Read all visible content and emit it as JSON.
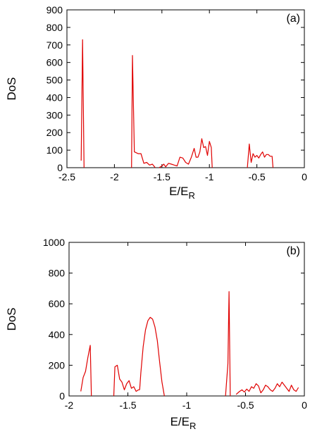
{
  "chart_data": [
    {
      "type": "line",
      "panel_label": "(a)",
      "xlabel": "E/E",
      "xlabel_sub": "R",
      "ylabel": "DoS",
      "xlim": [
        -2.5,
        0
      ],
      "ylim": [
        0,
        900
      ],
      "xticks": [
        -2.5,
        -2,
        -1.5,
        -1,
        -0.5,
        0
      ],
      "xtick_labels": [
        "-2.5",
        "-2",
        "-1.5",
        "-1",
        "-0.5",
        "0"
      ],
      "yticks": [
        0,
        100,
        200,
        300,
        400,
        500,
        600,
        700,
        800,
        900
      ],
      "ytick_labels": [
        "0",
        "100",
        "200",
        "300",
        "400",
        "500",
        "600",
        "700",
        "800",
        "900"
      ],
      "grid": false,
      "color": "#e00000",
      "series": [
        {
          "segments": [
            [
              [
                -2.35,
                40
              ],
              [
                -2.335,
                730
              ],
              [
                -2.32,
                0
              ]
            ],
            [
              [
                -1.82,
                0
              ],
              [
                -1.81,
                640
              ],
              [
                -1.79,
                90
              ],
              [
                -1.75,
                80
              ],
              [
                -1.72,
                80
              ],
              [
                -1.69,
                25
              ],
              [
                -1.66,
                30
              ],
              [
                -1.63,
                15
              ],
              [
                -1.6,
                20
              ],
              [
                -1.57,
                0
              ]
            ],
            [
              [
                -1.53,
                0
              ],
              [
                -1.5,
                10
              ],
              [
                -1.48,
                20
              ],
              [
                -1.46,
                5
              ],
              [
                -1.43,
                25
              ],
              [
                -1.4,
                20
              ],
              [
                -1.37,
                15
              ],
              [
                -1.34,
                10
              ],
              [
                -1.31,
                60
              ],
              [
                -1.28,
                55
              ],
              [
                -1.25,
                30
              ],
              [
                -1.22,
                20
              ],
              [
                -1.19,
                60
              ],
              [
                -1.16,
                110
              ],
              [
                -1.14,
                60
              ],
              [
                -1.12,
                60
              ],
              [
                -1.1,
                90
              ],
              [
                -1.08,
                165
              ],
              [
                -1.06,
                115
              ],
              [
                -1.04,
                120
              ],
              [
                -1.02,
                70
              ],
              [
                -1.0,
                150
              ],
              [
                -0.98,
                115
              ],
              [
                -0.97,
                0
              ]
            ],
            [
              [
                -0.6,
                0
              ],
              [
                -0.58,
                135
              ],
              [
                -0.56,
                30
              ],
              [
                -0.54,
                80
              ],
              [
                -0.52,
                60
              ],
              [
                -0.5,
                70
              ],
              [
                -0.48,
                55
              ],
              [
                -0.46,
                75
              ],
              [
                -0.44,
                90
              ],
              [
                -0.42,
                60
              ],
              [
                -0.4,
                75
              ],
              [
                -0.38,
                75
              ],
              [
                -0.36,
                65
              ],
              [
                -0.34,
                65
              ],
              [
                -0.33,
                0
              ]
            ]
          ]
        }
      ]
    },
    {
      "type": "line",
      "panel_label": "(b)",
      "xlabel": "E/E",
      "xlabel_sub": "R",
      "ylabel": "DoS",
      "xlim": [
        -2,
        0
      ],
      "ylim": [
        0,
        1000
      ],
      "xticks": [
        -2,
        -1.5,
        -1,
        -0.5,
        0
      ],
      "xtick_labels": [
        "-2",
        "-1.5",
        "-1",
        "-0.5",
        "0"
      ],
      "yticks": [
        0,
        200,
        400,
        600,
        800,
        1000
      ],
      "ytick_labels": [
        "0",
        "200",
        "400",
        "600",
        "800",
        "1000"
      ],
      "grid": false,
      "color": "#e00000",
      "series": [
        {
          "segments": [
            [
              [
                -1.9,
                30
              ],
              [
                -1.88,
                120
              ],
              [
                -1.86,
                160
              ],
              [
                -1.84,
                250
              ],
              [
                -1.82,
                330
              ],
              [
                -1.81,
                0
              ]
            ],
            [
              [
                -1.62,
                0
              ],
              [
                -1.61,
                190
              ],
              [
                -1.59,
                200
              ],
              [
                -1.57,
                110
              ],
              [
                -1.55,
                90
              ],
              [
                -1.53,
                40
              ],
              [
                -1.51,
                80
              ],
              [
                -1.49,
                100
              ],
              [
                -1.47,
                50
              ],
              [
                -1.45,
                60
              ],
              [
                -1.43,
                30
              ],
              [
                -1.41,
                40
              ],
              [
                -1.4,
                40
              ]
            ],
            [
              [
                -1.4,
                40
              ],
              [
                -1.39,
                150
              ],
              [
                -1.37,
                320
              ],
              [
                -1.35,
                430
              ],
              [
                -1.33,
                490
              ],
              [
                -1.31,
                512
              ],
              [
                -1.29,
                500
              ],
              [
                -1.27,
                450
              ],
              [
                -1.25,
                360
              ],
              [
                -1.23,
                220
              ],
              [
                -1.21,
                90
              ],
              [
                -1.19,
                0
              ]
            ],
            [
              [
                -0.67,
                0
              ],
              [
                -0.65,
                210
              ],
              [
                -0.64,
                680
              ],
              [
                -0.63,
                0
              ]
            ],
            [
              [
                -0.58,
                10
              ],
              [
                -0.55,
                30
              ],
              [
                -0.53,
                40
              ],
              [
                -0.51,
                25
              ],
              [
                -0.49,
                45
              ],
              [
                -0.47,
                30
              ],
              [
                -0.45,
                60
              ],
              [
                -0.43,
                50
              ],
              [
                -0.41,
                80
              ],
              [
                -0.39,
                65
              ],
              [
                -0.37,
                20
              ],
              [
                -0.35,
                40
              ],
              [
                -0.33,
                70
              ],
              [
                -0.31,
                60
              ],
              [
                -0.29,
                40
              ],
              [
                -0.27,
                30
              ],
              [
                -0.25,
                50
              ],
              [
                -0.23,
                80
              ],
              [
                -0.21,
                60
              ],
              [
                -0.19,
                90
              ],
              [
                -0.17,
                70
              ],
              [
                -0.15,
                50
              ],
              [
                -0.13,
                30
              ],
              [
                -0.11,
                70
              ],
              [
                -0.09,
                40
              ],
              [
                -0.07,
                30
              ],
              [
                -0.05,
                55
              ]
            ]
          ]
        }
      ]
    }
  ]
}
